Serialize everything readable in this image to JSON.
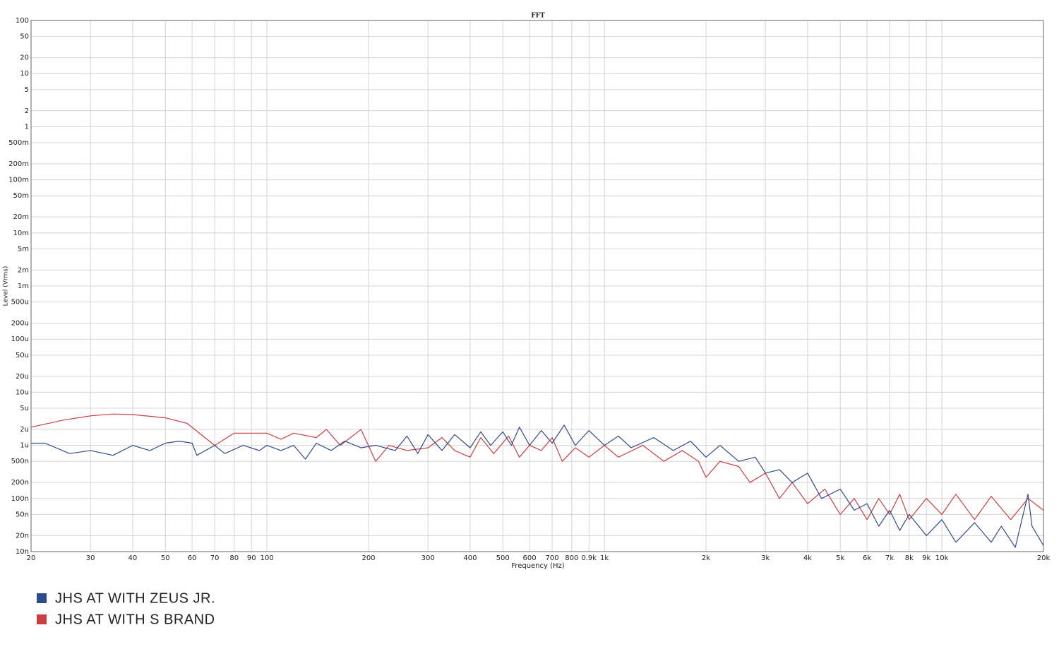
{
  "chart_data": {
    "type": "line",
    "title": "FFT",
    "x_label": "Frequency (Hz)",
    "y_label": "Level (Vrms)",
    "x_log": true,
    "y_log": true,
    "grid": true,
    "xlim": [
      20,
      20000
    ],
    "ylim": [
      1e-08,
      100
    ],
    "xticks": [
      20,
      30,
      40,
      50,
      60,
      70,
      80,
      90,
      100,
      200,
      300,
      400,
      500,
      600,
      700,
      800,
      {
        "value": 900,
        "label": "0.9k"
      },
      {
        "value": 1000,
        "label": "1k"
      },
      {
        "value": 2000,
        "label": "2k"
      },
      {
        "value": 3000,
        "label": "3k"
      },
      {
        "value": 4000,
        "label": "4k"
      },
      {
        "value": 5000,
        "label": "5k"
      },
      {
        "value": 6000,
        "label": "6k"
      },
      {
        "value": 7000,
        "label": "7k"
      },
      {
        "value": 8000,
        "label": "8k"
      },
      {
        "value": 9000,
        "label": "9k"
      },
      {
        "value": 10000,
        "label": "10k"
      },
      {
        "value": 20000,
        "label": "20k"
      }
    ],
    "yticks": [
      100,
      50,
      20,
      10,
      5,
      2,
      1,
      {
        "value": 0.5,
        "label": "500m"
      },
      {
        "value": 0.2,
        "label": "200m"
      },
      {
        "value": 0.1,
        "label": "100m"
      },
      {
        "value": 0.05,
        "label": "50m"
      },
      {
        "value": 0.02,
        "label": "20m"
      },
      {
        "value": 0.01,
        "label": "10m"
      },
      {
        "value": 0.005,
        "label": "5m"
      },
      {
        "value": 0.002,
        "label": "2m"
      },
      {
        "value": 0.001,
        "label": "1m"
      },
      {
        "value": 0.0005,
        "label": "500u"
      },
      {
        "value": 0.0002,
        "label": "200u"
      },
      {
        "value": 0.0001,
        "label": "100u"
      },
      {
        "value": 5e-05,
        "label": "50u"
      },
      {
        "value": 2e-05,
        "label": "20u"
      },
      {
        "value": 1e-05,
        "label": "10u"
      },
      {
        "value": 5e-06,
        "label": "5u"
      },
      {
        "value": 2e-06,
        "label": "2u"
      },
      {
        "value": 1e-06,
        "label": "1u"
      },
      {
        "value": 5e-07,
        "label": "500n"
      },
      {
        "value": 2e-07,
        "label": "200n"
      },
      {
        "value": 1e-07,
        "label": "100n"
      },
      {
        "value": 5e-08,
        "label": "50n"
      },
      {
        "value": 2e-08,
        "label": "20n"
      },
      {
        "value": 1e-08,
        "label": "10n"
      }
    ],
    "series": [
      {
        "name": "JHS AT WITH ZEUS JR.",
        "color": "#2f4a8c",
        "x": [
          20,
          22,
          26,
          30,
          35,
          40,
          45,
          50,
          55,
          60,
          62,
          70,
          75,
          85,
          95,
          100,
          110,
          120,
          130,
          140,
          155,
          170,
          190,
          210,
          240,
          260,
          280,
          300,
          330,
          360,
          400,
          430,
          460,
          500,
          530,
          560,
          600,
          650,
          700,
          760,
          820,
          900,
          1000,
          1100,
          1200,
          1400,
          1600,
          1800,
          2000,
          2200,
          2500,
          2800,
          3000,
          3300,
          3600,
          4000,
          4400,
          5000,
          5500,
          6000,
          6500,
          7000,
          7500,
          8000,
          9000,
          10000,
          11000,
          12500,
          14000,
          15000,
          16500,
          18000,
          18500,
          20000
        ],
        "values": [
          1.1e-06,
          1.1e-06,
          7e-07,
          8e-07,
          6.5e-07,
          1e-06,
          8e-07,
          1.1e-06,
          1.2e-06,
          1.1e-06,
          6.5e-07,
          1e-06,
          7e-07,
          1e-06,
          8e-07,
          1e-06,
          8e-07,
          1e-06,
          5.5e-07,
          1.1e-06,
          8e-07,
          1.2e-06,
          9e-07,
          1e-06,
          8e-07,
          1.5e-06,
          7e-07,
          1.6e-06,
          8e-07,
          1.6e-06,
          9e-07,
          1.8e-06,
          1e-06,
          1.8e-06,
          1e-06,
          2.2e-06,
          1e-06,
          1.9e-06,
          1.1e-06,
          2.4e-06,
          1e-06,
          1.9e-06,
          1e-06,
          1.5e-06,
          9e-07,
          1.4e-06,
          8e-07,
          1.2e-06,
          6e-07,
          1e-06,
          5e-07,
          6e-07,
          3e-07,
          3.5e-07,
          2e-07,
          3e-07,
          1e-07,
          1.5e-07,
          6e-08,
          8e-08,
          3e-08,
          6e-08,
          2.5e-08,
          5e-08,
          2e-08,
          4e-08,
          1.5e-08,
          3.5e-08,
          1.5e-08,
          3e-08,
          1.2e-08,
          1.2e-07,
          3e-08,
          1.3e-08
        ]
      },
      {
        "name": "JHS AT WITH S BRAND",
        "color": "#cc3d3f",
        "x": [
          20,
          25,
          30,
          35,
          40,
          50,
          58,
          70,
          80,
          90,
          100,
          110,
          120,
          140,
          150,
          165,
          190,
          210,
          230,
          260,
          300,
          330,
          360,
          400,
          430,
          470,
          520,
          560,
          600,
          650,
          700,
          750,
          820,
          900,
          1000,
          1100,
          1300,
          1500,
          1700,
          1900,
          2000,
          2200,
          2500,
          2700,
          3000,
          3300,
          3600,
          4000,
          4500,
          5000,
          5500,
          6000,
          6500,
          7000,
          7500,
          8000,
          9000,
          10000,
          11000,
          12500,
          14000,
          16000,
          18000,
          20000
        ],
        "values": [
          2.2e-06,
          3e-06,
          3.6e-06,
          3.9e-06,
          3.8e-06,
          3.3e-06,
          2.6e-06,
          1e-06,
          1.7e-06,
          1.7e-06,
          1.7e-06,
          1.3e-06,
          1.7e-06,
          1.4e-06,
          2e-06,
          1e-06,
          2e-06,
          5e-07,
          1e-06,
          8e-07,
          9e-07,
          1.4e-06,
          8e-07,
          6e-07,
          1.4e-06,
          7e-07,
          1.5e-06,
          6e-07,
          1e-06,
          8e-07,
          1.4e-06,
          5e-07,
          9e-07,
          6e-07,
          1e-06,
          6e-07,
          1e-06,
          5e-07,
          8e-07,
          5e-07,
          2.5e-07,
          5e-07,
          4e-07,
          2e-07,
          3e-07,
          1e-07,
          2e-07,
          8e-08,
          1.5e-07,
          5e-08,
          1e-07,
          4e-08,
          1e-07,
          5e-08,
          1.2e-07,
          4e-08,
          1e-07,
          5e-08,
          1.2e-07,
          4e-08,
          1.1e-07,
          4e-08,
          1e-07,
          6e-08
        ]
      }
    ]
  }
}
